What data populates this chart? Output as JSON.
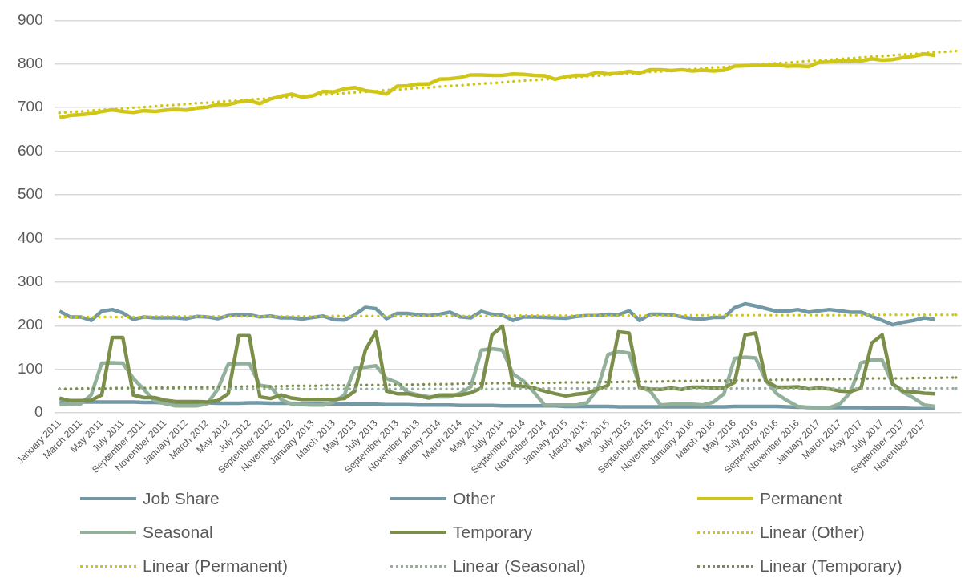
{
  "chart_data": {
    "type": "line",
    "categories": [
      "January 2011",
      null,
      "March 2011",
      null,
      "May 2011",
      null,
      "July 2011",
      null,
      "September 2011",
      null,
      "November 2011",
      null,
      "January 2012",
      null,
      "March 2012",
      null,
      "May 2012",
      null,
      "July 2012",
      null,
      "September 2012",
      null,
      "November 2012",
      null,
      "January 2013",
      null,
      "March 2013",
      null,
      "May 2013",
      null,
      "July 2013",
      null,
      "September 2013",
      null,
      "November 2013",
      null,
      "January 2014",
      null,
      "March 2014",
      null,
      "May 2014",
      null,
      "July 2014",
      null,
      "September 2014",
      null,
      "November 2014",
      null,
      "January 2015",
      null,
      "March 2015",
      null,
      "May 2015",
      null,
      "July 2015",
      null,
      "September 2015",
      null,
      "November 2015",
      null,
      "January 2016",
      null,
      "March 2016",
      null,
      "May 2016",
      null,
      "July 2016",
      null,
      "September 2016",
      null,
      "November 2016",
      null,
      "January 2017",
      null,
      "March 2017",
      null,
      "May 2017",
      null,
      "July 2017",
      null,
      "September 2017",
      null,
      "November 2017",
      null,
      null,
      null
    ],
    "series": [
      {
        "name": "Job Share",
        "color": "#7399a6",
        "values": [
          25,
          25,
          25,
          25,
          25,
          25,
          25,
          25,
          24,
          24,
          23,
          23,
          23,
          23,
          23,
          22,
          22,
          22,
          23,
          23,
          22,
          22,
          22,
          21,
          21,
          21,
          21,
          21,
          20,
          20,
          20,
          19,
          19,
          19,
          18,
          18,
          18,
          18,
          17,
          17,
          17,
          17,
          16,
          16,
          16,
          16,
          16,
          16,
          15,
          15,
          15,
          15,
          15,
          14,
          14,
          14,
          14,
          14,
          14,
          14,
          14,
          14,
          14,
          14,
          15,
          15,
          15,
          15,
          15,
          14,
          13,
          13,
          12,
          12,
          12,
          12,
          12,
          11,
          11,
          11,
          11,
          10,
          10,
          10,
          null,
          null
        ]
      },
      {
        "name": "Other",
        "color": "#7399a6",
        "values": [
          233,
          220,
          220,
          212,
          233,
          237,
          229,
          214,
          220,
          218,
          218,
          218,
          216,
          221,
          220,
          216,
          223,
          225,
          225,
          220,
          222,
          218,
          218,
          215,
          219,
          222,
          214,
          213,
          225,
          242,
          239,
          216,
          228,
          228,
          225,
          223,
          226,
          231,
          220,
          218,
          233,
          226,
          224,
          212,
          220,
          220,
          219,
          218,
          217,
          221,
          223,
          223,
          226,
          225,
          234,
          212,
          226,
          226,
          225,
          220,
          216,
          215,
          219,
          219,
          241,
          250,
          245,
          239,
          233,
          233,
          237,
          231,
          234,
          237,
          234,
          231,
          231,
          221,
          212,
          202,
          208,
          212,
          218,
          214,
          null,
          null
        ]
      },
      {
        "name": "Permanent",
        "color": "#cfc617",
        "values": [
          677,
          682,
          684,
          686,
          691,
          695,
          691,
          689,
          693,
          691,
          694,
          696,
          694,
          699,
          701,
          707,
          707,
          713,
          716,
          709,
          720,
          726,
          731,
          724,
          727,
          737,
          736,
          743,
          746,
          739,
          736,
          731,
          749,
          750,
          754,
          754,
          765,
          766,
          769,
          775,
          775,
          774,
          774,
          777,
          776,
          774,
          773,
          765,
          771,
          774,
          774,
          781,
          777,
          779,
          783,
          779,
          787,
          787,
          785,
          787,
          784,
          786,
          784,
          786,
          795,
          796,
          797,
          797,
          798,
          795,
          796,
          794,
          804,
          805,
          807,
          807,
          807,
          812,
          809,
          810,
          815,
          818,
          823,
          820,
          null,
          null
        ]
      },
      {
        "name": "Seasonal",
        "color": "#93b09b",
        "values": [
          19,
          20,
          21,
          41,
          114,
          115,
          114,
          79,
          54,
          28,
          21,
          16,
          16,
          16,
          21,
          54,
          112,
          113,
          113,
          63,
          60,
          31,
          20,
          19,
          18,
          18,
          25,
          41,
          102,
          105,
          108,
          79,
          70,
          47,
          41,
          37,
          37,
          37,
          45,
          60,
          144,
          147,
          144,
          89,
          73,
          47,
          18,
          18,
          18,
          18,
          23,
          54,
          134,
          141,
          137,
          60,
          50,
          18,
          20,
          20,
          20,
          18,
          25,
          44,
          125,
          128,
          126,
          73,
          44,
          28,
          15,
          12,
          12,
          12,
          21,
          47,
          115,
          121,
          121,
          66,
          47,
          34,
          18,
          15,
          null,
          null
        ]
      },
      {
        "name": "Temporary",
        "color": "#7b8f4b",
        "values": [
          34,
          28,
          28,
          29,
          41,
          173,
          173,
          41,
          35,
          35,
          29,
          26,
          26,
          26,
          25,
          28,
          44,
          177,
          177,
          37,
          33,
          41,
          34,
          31,
          31,
          31,
          31,
          33,
          50,
          144,
          186,
          50,
          44,
          44,
          39,
          34,
          41,
          41,
          41,
          46,
          57,
          179,
          199,
          63,
          61,
          57,
          50,
          44,
          39,
          43,
          45,
          54,
          63,
          186,
          183,
          57,
          55,
          54,
          57,
          54,
          59,
          59,
          57,
          57,
          70,
          179,
          183,
          73,
          59,
          59,
          60,
          55,
          57,
          55,
          50,
          49,
          57,
          160,
          179,
          66,
          50,
          48,
          45,
          44,
          null,
          null
        ]
      },
      {
        "name": "Linear (Other)",
        "color": "#cfc617",
        "line_style": "dotted",
        "values": [
          220,
          220,
          220,
          220,
          220,
          220,
          220,
          220,
          220,
          221,
          221,
          221,
          221,
          221,
          221,
          221,
          221,
          221,
          221,
          221,
          221,
          221,
          221,
          221,
          221,
          221,
          222,
          222,
          222,
          222,
          222,
          222,
          222,
          222,
          222,
          222,
          222,
          222,
          222,
          222,
          222,
          222,
          222,
          223,
          223,
          223,
          223,
          223,
          223,
          223,
          223,
          223,
          223,
          223,
          223,
          223,
          223,
          223,
          223,
          223,
          224,
          224,
          224,
          224,
          224,
          224,
          224,
          224,
          224,
          224,
          224,
          224,
          224,
          224,
          224,
          224,
          224,
          225,
          225,
          225,
          225,
          225,
          225,
          225,
          225,
          225
        ]
      },
      {
        "name": "Linear (Permanent)",
        "color": "#cfc617",
        "line_style": "dotted",
        "values": [
          688,
          690,
          691,
          693,
          695,
          696,
          698,
          700,
          701,
          703,
          705,
          706,
          708,
          710,
          711,
          713,
          715,
          716,
          718,
          720,
          721,
          723,
          725,
          726,
          728,
          730,
          731,
          733,
          735,
          736,
          738,
          740,
          741,
          743,
          745,
          746,
          748,
          750,
          751,
          753,
          755,
          756,
          758,
          760,
          762,
          763,
          765,
          767,
          768,
          770,
          772,
          773,
          775,
          777,
          778,
          780,
          782,
          783,
          785,
          787,
          788,
          790,
          792,
          793,
          795,
          797,
          798,
          800,
          802,
          803,
          805,
          807,
          808,
          810,
          812,
          813,
          815,
          817,
          818,
          820,
          822,
          823,
          825,
          827,
          828,
          830
        ]
      },
      {
        "name": "Linear (Seasonal)",
        "color": "#93b09b",
        "line_style": "dotted",
        "values": [
          55,
          55,
          55,
          55,
          55,
          55,
          55,
          55,
          55,
          55,
          55,
          55,
          55,
          55,
          55,
          55,
          55,
          55,
          55,
          55,
          55,
          55,
          55,
          55,
          55,
          55,
          55,
          55,
          55,
          55,
          55,
          55,
          55,
          55,
          55,
          55,
          55,
          55,
          55,
          55,
          55,
          55,
          55,
          56,
          56,
          56,
          56,
          56,
          56,
          56,
          56,
          56,
          56,
          56,
          56,
          56,
          56,
          56,
          56,
          56,
          56,
          56,
          56,
          56,
          56,
          56,
          56,
          56,
          56,
          56,
          56,
          56,
          56,
          56,
          56,
          56,
          56,
          56,
          56,
          56,
          56,
          56,
          56,
          56,
          56,
          56
        ]
      },
      {
        "name": "Linear (Temporary)",
        "color": "#7b8f4b",
        "line_style": "dotted",
        "values": [
          55,
          55,
          56,
          56,
          56,
          57,
          57,
          57,
          57,
          58,
          58,
          58,
          59,
          59,
          59,
          60,
          60,
          60,
          61,
          61,
          61,
          61,
          62,
          62,
          62,
          63,
          63,
          63,
          64,
          64,
          64,
          64,
          65,
          65,
          65,
          66,
          66,
          66,
          67,
          67,
          67,
          68,
          68,
          68,
          68,
          69,
          69,
          69,
          70,
          70,
          70,
          71,
          71,
          71,
          72,
          72,
          72,
          72,
          73,
          73,
          73,
          74,
          74,
          74,
          75,
          75,
          75,
          75,
          76,
          76,
          76,
          77,
          77,
          77,
          78,
          78,
          78,
          79,
          79,
          79,
          79,
          80,
          80,
          80,
          81,
          81
        ]
      }
    ],
    "ylim": [
      0,
      900
    ],
    "yticks": [
      0,
      100,
      200,
      300,
      400,
      500,
      600,
      700,
      800,
      900
    ],
    "grid": "y",
    "legend": "bottom",
    "marker": "none",
    "line_style": "solid"
  }
}
